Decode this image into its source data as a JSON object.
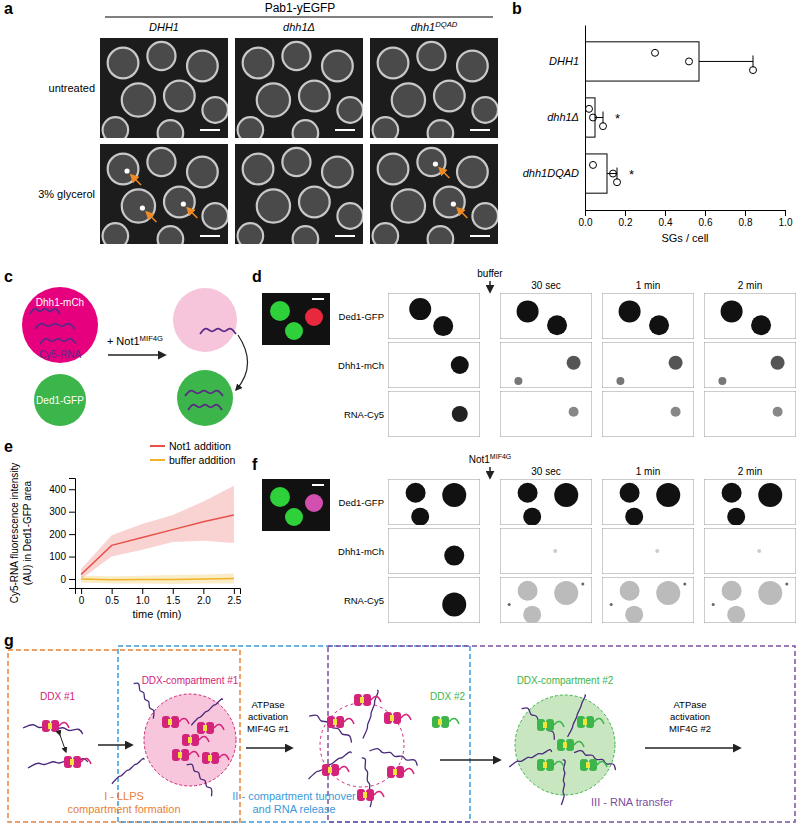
{
  "panel_labels": [
    "a",
    "b",
    "c",
    "d",
    "e",
    "f",
    "g"
  ],
  "panel_a": {
    "header": "Pab1-yEGFP",
    "columns": [
      {
        "base": "DHH1"
      },
      {
        "base": "dhh1Δ"
      },
      {
        "base": "dhh1",
        "sup": "DQAD"
      }
    ],
    "rows": [
      "untreated",
      "3% glycerol"
    ]
  },
  "chart_data": [
    {
      "type": "bar",
      "orientation": "horizontal",
      "categories": [
        "DHH1",
        "dhh1Δ",
        "dhh1DQAD"
      ],
      "values": [
        0.57,
        0.05,
        0.11
      ],
      "errors": [
        0.27,
        0.04,
        0.05
      ],
      "points": [
        [
          0.35,
          0.52,
          0.84
        ],
        [
          0.02,
          0.04,
          0.09
        ],
        [
          0.04,
          0.14,
          0.16
        ]
      ],
      "significance": [
        null,
        "*",
        "*"
      ],
      "color": "#ffffff",
      "xlabel": "SGs / cell",
      "xlim": [
        0,
        1
      ],
      "xticks": [
        {
          "value": 0,
          "label": "0.0"
        },
        {
          "value": 0.2,
          "label": "0.2"
        },
        {
          "value": 0.4,
          "label": "0.4"
        },
        {
          "value": 0.6,
          "label": "0.6"
        },
        {
          "value": 0.8,
          "label": "0.8"
        },
        {
          "value": 1,
          "label": "1.0"
        }
      ]
    },
    {
      "type": "line",
      "x": [
        0,
        0.5,
        1,
        1.5,
        2,
        2.5
      ],
      "series": [
        {
          "name": "Not1 addition",
          "color": "#e8514a",
          "values": [
            20,
            150,
            185,
            220,
            255,
            285
          ],
          "lower": [
            0,
            100,
            130,
            165,
            170,
            160
          ],
          "upper": [
            45,
            195,
            245,
            285,
            345,
            415
          ]
        },
        {
          "name": "buffer addition",
          "color": "#f0b323",
          "values": [
            0,
            -3,
            -2,
            -2,
            0,
            2
          ],
          "lower": [
            -15,
            -20,
            -20,
            -22,
            -20,
            -20
          ],
          "upper": [
            15,
            12,
            15,
            18,
            20,
            25
          ]
        }
      ],
      "xlabel": "time (min)",
      "ylabel": [
        "Cy5-RNA fluorescence intensity",
        "(AU) in Ded1-GFP area"
      ],
      "xlim": [
        -0.1,
        2.6
      ],
      "ylim": [
        -40,
        450
      ],
      "xticks": [
        0,
        0.5,
        {
          "value": 1,
          "label": "1.0"
        },
        1.5,
        {
          "value": 2,
          "label": "2.0"
        },
        2.5
      ],
      "yticks": [
        0,
        100,
        200,
        300,
        400
      ],
      "legend": "upper right"
    }
  ],
  "panel_c": {
    "protein_1": "Dhh1-mCh",
    "rna": "Cy5-RNA",
    "protein_2": "Ded1-GFP",
    "addition": {
      "base": "+ Not1",
      "sup": "MIF4G"
    }
  },
  "panel_d": {
    "addition": "buffer",
    "times": [
      "30 sec",
      "1 min",
      "2 min"
    ],
    "channels": [
      "Ded1-GFP",
      "Dhh1-mCh",
      "RNA-Cy5"
    ]
  },
  "panel_f": {
    "addition": {
      "base": "Not1",
      "sup": "MIF4G"
    },
    "times": [
      "30 sec",
      "1 min",
      "2 min"
    ],
    "channels": [
      "Ded1-GFP",
      "Dhh1-mCh",
      "RNA-Cy5"
    ]
  },
  "panel_g": {
    "ddx_1": "DDX #1",
    "compartment_1": "DDX-compartment #1",
    "activation_1": [
      "ATPase",
      "activation",
      "MIF4G #1"
    ],
    "ddx_2": "DDX #2",
    "compartment_2": "DDX-compartment #2",
    "activation_2": [
      "ATPase",
      "activation",
      "MIF4G #2"
    ],
    "stages": [
      [
        "I - LLPS",
        "compartment formation"
      ],
      [
        "II - compartment turnover",
        "and RNA release"
      ],
      [
        "III - RNA transfer"
      ]
    ]
  }
}
